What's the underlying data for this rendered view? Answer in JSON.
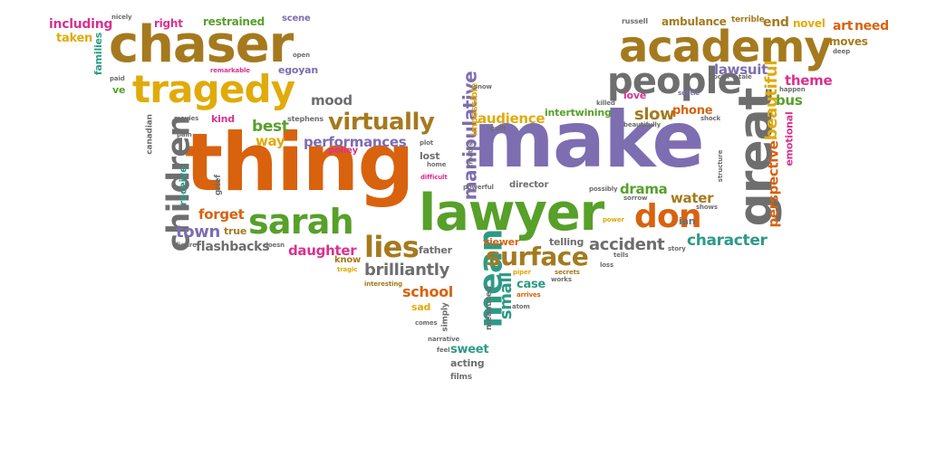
{
  "colors": {
    "orange": "#d9620e",
    "purple": "#7d6db1",
    "green": "#57a02a",
    "brown": "#a57a1e",
    "yellow": "#e0ab0a",
    "gray": "#6e6e6e",
    "teal": "#2d9a86",
    "pink": "#d9328f"
  },
  "words": [
    {
      "text": "thing",
      "color": "orange"
    },
    {
      "text": "make",
      "color": "purple"
    },
    {
      "text": "lawyer",
      "color": "green"
    },
    {
      "text": "chaser",
      "color": "brown"
    },
    {
      "text": "academy",
      "color": "brown"
    },
    {
      "text": "tragedy",
      "color": "yellow"
    },
    {
      "text": "great",
      "color": "gray"
    },
    {
      "text": "people",
      "color": "gray"
    },
    {
      "text": "sarah",
      "color": "green"
    },
    {
      "text": "children",
      "color": "gray"
    },
    {
      "text": "don",
      "color": "orange"
    },
    {
      "text": "mean",
      "color": "teal"
    },
    {
      "text": "lies",
      "color": "brown"
    },
    {
      "text": "surface",
      "color": "brown"
    },
    {
      "text": "virtually",
      "color": "brown"
    },
    {
      "text": "brilliantly",
      "color": "gray"
    },
    {
      "text": "manipulative",
      "color": "purple"
    },
    {
      "text": "beautiful",
      "color": "yellow"
    },
    {
      "text": "perspective",
      "color": "orange"
    },
    {
      "text": "accident",
      "color": "gray"
    },
    {
      "text": "character",
      "color": "teal"
    },
    {
      "text": "audience",
      "color": "yellow"
    },
    {
      "text": "slow",
      "color": "brown"
    },
    {
      "text": "lawsuit",
      "color": "purple"
    },
    {
      "text": "performances",
      "color": "purple"
    },
    {
      "text": "flashbacks",
      "color": "gray"
    },
    {
      "text": "town",
      "color": "purple"
    },
    {
      "text": "forget",
      "color": "orange"
    },
    {
      "text": "daughter",
      "color": "pink"
    },
    {
      "text": "school",
      "color": "orange"
    },
    {
      "text": "small",
      "color": "teal"
    },
    {
      "text": "best",
      "color": "green"
    },
    {
      "text": "way",
      "color": "yellow"
    },
    {
      "text": "mood",
      "color": "gray"
    },
    {
      "text": "theme",
      "color": "pink"
    },
    {
      "text": "drama",
      "color": "green"
    },
    {
      "text": "water",
      "color": "brown"
    },
    {
      "text": "phone",
      "color": "orange"
    },
    {
      "text": "bus",
      "color": "green"
    },
    {
      "text": "emotional",
      "color": "pink"
    },
    {
      "text": "including",
      "color": "pink"
    },
    {
      "text": "taken",
      "color": "yellow"
    },
    {
      "text": "families",
      "color": "teal"
    },
    {
      "text": "right",
      "color": "pink"
    },
    {
      "text": "restrained",
      "color": "green"
    },
    {
      "text": "scene",
      "color": "purple"
    },
    {
      "text": "egoyan",
      "color": "purple"
    },
    {
      "text": "remarkable",
      "color": "pink"
    },
    {
      "text": "ambulance",
      "color": "brown"
    },
    {
      "text": "terrible",
      "color": "brown"
    },
    {
      "text": "end",
      "color": "brown"
    },
    {
      "text": "novel",
      "color": "yellow"
    },
    {
      "text": "art",
      "color": "orange"
    },
    {
      "text": "need",
      "color": "orange"
    },
    {
      "text": "moves",
      "color": "brown"
    },
    {
      "text": "deep",
      "color": "gray"
    },
    {
      "text": "russell",
      "color": "gray"
    },
    {
      "text": "love",
      "color": "pink"
    },
    {
      "text": "subtle",
      "color": "purple"
    },
    {
      "text": "social",
      "color": "gray"
    },
    {
      "text": "tale",
      "color": "gray"
    },
    {
      "text": "happen",
      "color": "gray"
    },
    {
      "text": "shock",
      "color": "gray"
    },
    {
      "text": "killed",
      "color": "gray"
    },
    {
      "text": "impossible",
      "color": "yellow"
    },
    {
      "text": "snow",
      "color": "gray"
    },
    {
      "text": "guilt",
      "color": "gray"
    },
    {
      "text": "intertwining",
      "color": "green"
    },
    {
      "text": "canadian",
      "color": "gray"
    },
    {
      "text": "movies",
      "color": "gray"
    },
    {
      "text": "kind",
      "color": "pink"
    },
    {
      "text": "stephens",
      "color": "gray"
    },
    {
      "text": "polley",
      "color": "pink"
    },
    {
      "text": "pain",
      "color": "gray"
    },
    {
      "text": "plot",
      "color": "gray"
    },
    {
      "text": "lost",
      "color": "gray"
    },
    {
      "text": "home",
      "color": "gray"
    },
    {
      "text": "difficult",
      "color": "pink"
    },
    {
      "text": "creates",
      "color": "gray"
    },
    {
      "text": "powerful",
      "color": "gray"
    },
    {
      "text": "director",
      "color": "gray"
    },
    {
      "text": "possibly",
      "color": "gray"
    },
    {
      "text": "sorrow",
      "color": "gray"
    },
    {
      "text": "beautifully",
      "color": "gray"
    },
    {
      "text": "structure",
      "color": "gray"
    },
    {
      "text": "shows",
      "color": "gray"
    },
    {
      "text": "ian",
      "color": "gray"
    },
    {
      "text": "power",
      "color": "yellow"
    },
    {
      "text": "receive",
      "color": "teal"
    },
    {
      "text": "grief",
      "color": "gray"
    },
    {
      "text": "true",
      "color": "brown"
    },
    {
      "text": "figure",
      "color": "gray"
    },
    {
      "text": "doesn",
      "color": "gray"
    },
    {
      "text": "father",
      "color": "gray"
    },
    {
      "text": "know",
      "color": "brown"
    },
    {
      "text": "tragic",
      "color": "yellow"
    },
    {
      "text": "viewer",
      "color": "orange"
    },
    {
      "text": "telling",
      "color": "gray"
    },
    {
      "text": "tells",
      "color": "gray"
    },
    {
      "text": "story",
      "color": "gray"
    },
    {
      "text": "loss",
      "color": "gray"
    },
    {
      "text": "interesting",
      "color": "brown"
    },
    {
      "text": "piper",
      "color": "yellow"
    },
    {
      "text": "secrets",
      "color": "brown"
    },
    {
      "text": "works",
      "color": "gray"
    },
    {
      "text": "case",
      "color": "teal"
    },
    {
      "text": "arrives",
      "color": "orange"
    },
    {
      "text": "sad",
      "color": "yellow"
    },
    {
      "text": "simply",
      "color": "gray"
    },
    {
      "text": "measured",
      "color": "gray"
    },
    {
      "text": "atom",
      "color": "gray"
    },
    {
      "text": "comes",
      "color": "gray"
    },
    {
      "text": "narrative",
      "color": "gray"
    },
    {
      "text": "feel",
      "color": "gray"
    },
    {
      "text": "sweet",
      "color": "teal"
    },
    {
      "text": "acting",
      "color": "gray"
    },
    {
      "text": "films",
      "color": "gray"
    },
    {
      "text": "nicely",
      "color": "gray"
    },
    {
      "text": "paid",
      "color": "gray"
    },
    {
      "text": "ve",
      "color": "green"
    },
    {
      "text": "open",
      "color": "gray"
    }
  ]
}
